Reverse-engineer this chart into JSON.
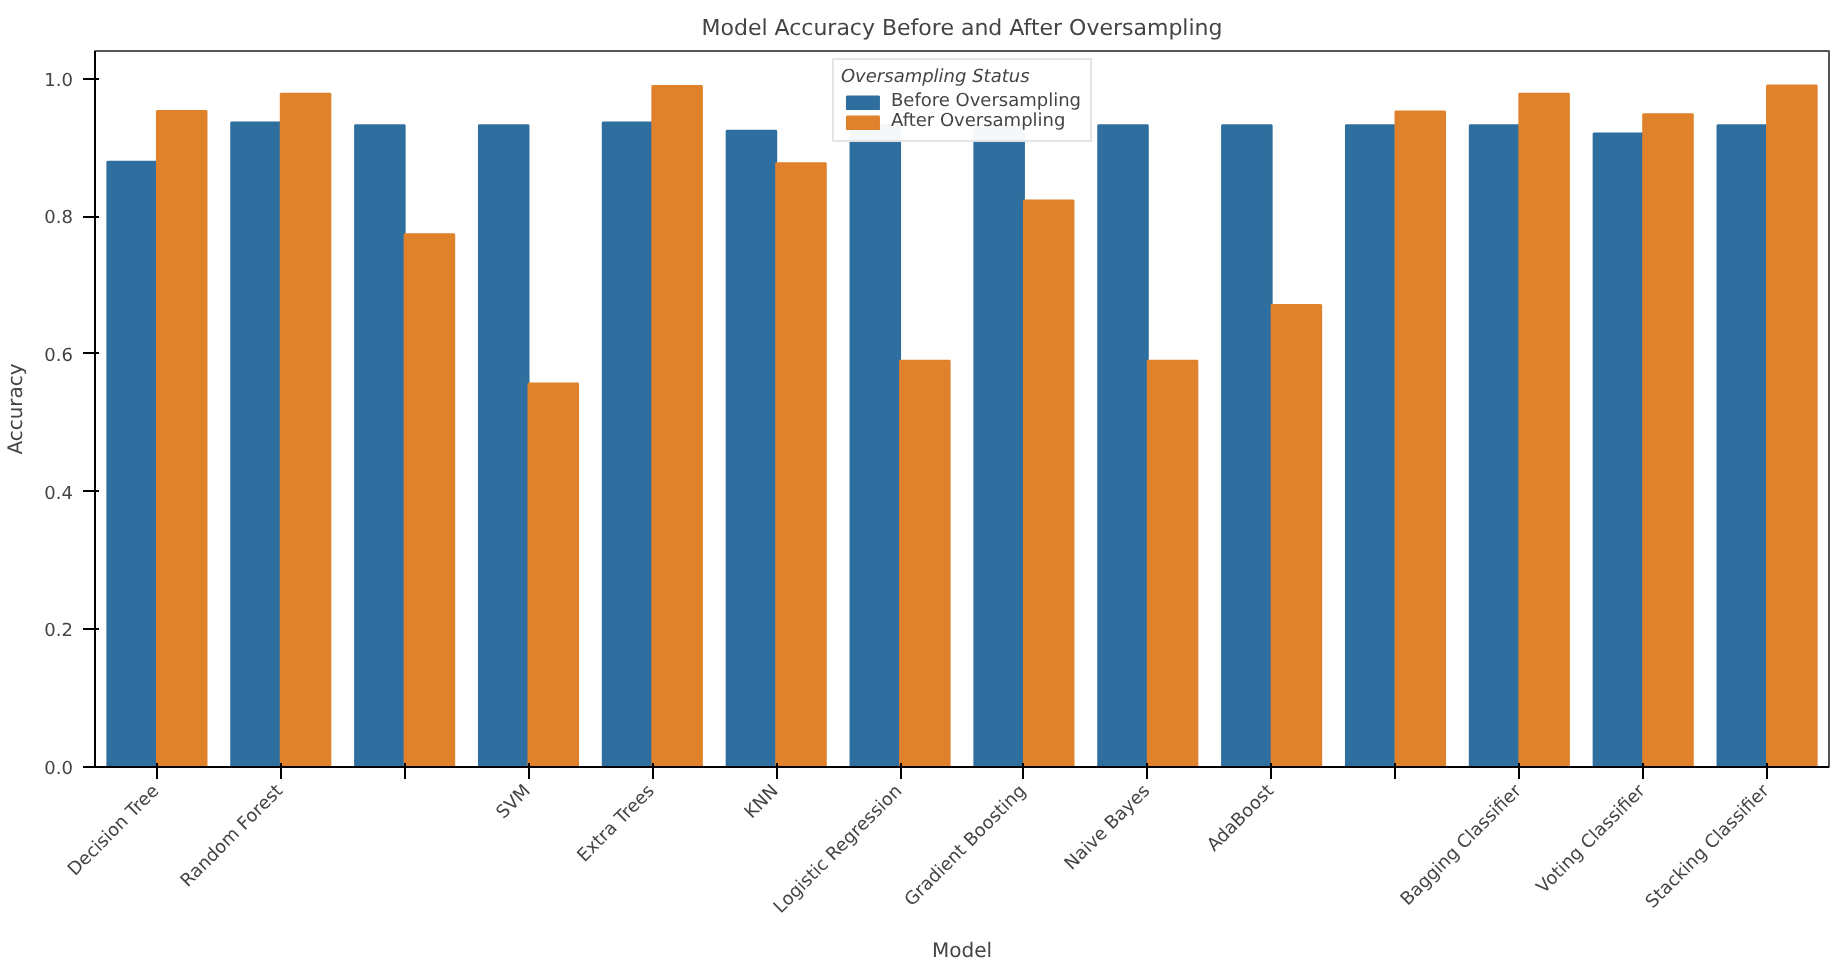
{
  "chart_data": {
    "type": "bar",
    "title": "Model Accuracy Before and After Oversampling",
    "xlabel": "Model",
    "ylabel": "Accuracy",
    "legend_title": "Oversampling Status",
    "legend": "top",
    "categories": [
      "Decision Tree",
      "Random Forest",
      null,
      "SVM",
      "Extra Trees",
      "KNN",
      "Logistic Regression",
      "Gradient Boosting",
      "Naive Bayes",
      "AdaBoost",
      null,
      "Bagging Classifier",
      "Voting Classifier",
      "Stacking Classifier"
    ],
    "series": [
      {
        "name": "Before Oversampling",
        "color": "#2f6f9f",
        "values": [
          0.879,
          0.936,
          0.932,
          0.932,
          0.936,
          0.924,
          0.932,
          0.932,
          0.932,
          0.932,
          0.932,
          0.932,
          0.92,
          0.932
        ]
      },
      {
        "name": "After Oversampling",
        "color": "#e0812b",
        "values": [
          0.953,
          0.978,
          0.774,
          0.557,
          0.989,
          0.877,
          0.59,
          0.823,
          0.59,
          0.671,
          0.952,
          0.978,
          0.948,
          0.99
        ]
      }
    ],
    "ylim": [
      0,
      1.04
    ],
    "yticks": [
      {
        "value": 0,
        "label": "0.0"
      },
      {
        "value": 0.2,
        "label": "0.2"
      },
      {
        "value": 0.4,
        "label": "0.4"
      },
      {
        "value": 0.6,
        "label": "0.6"
      },
      {
        "value": 0.8,
        "label": "0.8"
      },
      {
        "value": 1,
        "label": "1.0"
      }
    ],
    "grid": false
  }
}
